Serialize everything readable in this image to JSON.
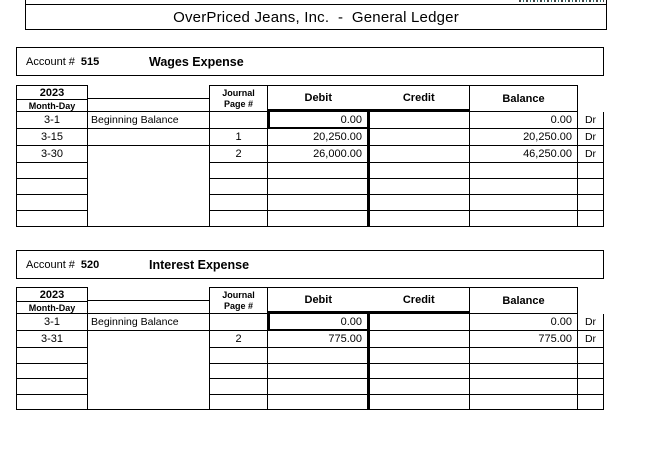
{
  "page": {
    "title": "OverPriced Jeans, Inc.  -  General Ledger"
  },
  "labels": {
    "account_label": "Account #",
    "year": "2023",
    "month_day": "Month-Day",
    "journal_line1": "Journal",
    "journal_line2": "Page #",
    "debit": "Debit",
    "credit": "Credit",
    "balance": "Balance"
  },
  "accounts": [
    {
      "number": "515",
      "name": "Wages Expense",
      "rows": [
        {
          "type": "data",
          "date": "3-1",
          "description": "Beginning Balance",
          "journal_page": "",
          "debit": "0.00",
          "credit": "",
          "balance": "0.00",
          "dr_cr": "Dr"
        },
        {
          "type": "data",
          "date": "3-15",
          "description": "",
          "journal_page": "1",
          "debit": "20,250.00",
          "credit": "",
          "balance": "20,250.00",
          "dr_cr": "Dr"
        },
        {
          "type": "data",
          "date": "3-30",
          "description": "",
          "journal_page": "2",
          "debit": "26,000.00",
          "credit": "",
          "balance": "46,250.00",
          "dr_cr": "Dr"
        },
        {
          "type": "empty"
        },
        {
          "type": "empty"
        },
        {
          "type": "empty"
        },
        {
          "type": "empty"
        }
      ]
    },
    {
      "number": "520",
      "name": "Interest Expense",
      "rows": [
        {
          "type": "data",
          "date": "3-1",
          "description": "Beginning Balance",
          "journal_page": "",
          "debit": "0.00",
          "credit": "",
          "balance": "0.00",
          "dr_cr": "Dr"
        },
        {
          "type": "data",
          "date": "3-31",
          "description": "",
          "journal_page": "2",
          "debit": "775.00",
          "credit": "",
          "balance": "775.00",
          "dr_cr": "Dr"
        },
        {
          "type": "empty"
        },
        {
          "type": "empty"
        },
        {
          "type": "empty"
        },
        {
          "type": "empty"
        }
      ]
    }
  ],
  "colors": {
    "border": "#000000",
    "background": "#ffffff",
    "text": "#000000"
  }
}
